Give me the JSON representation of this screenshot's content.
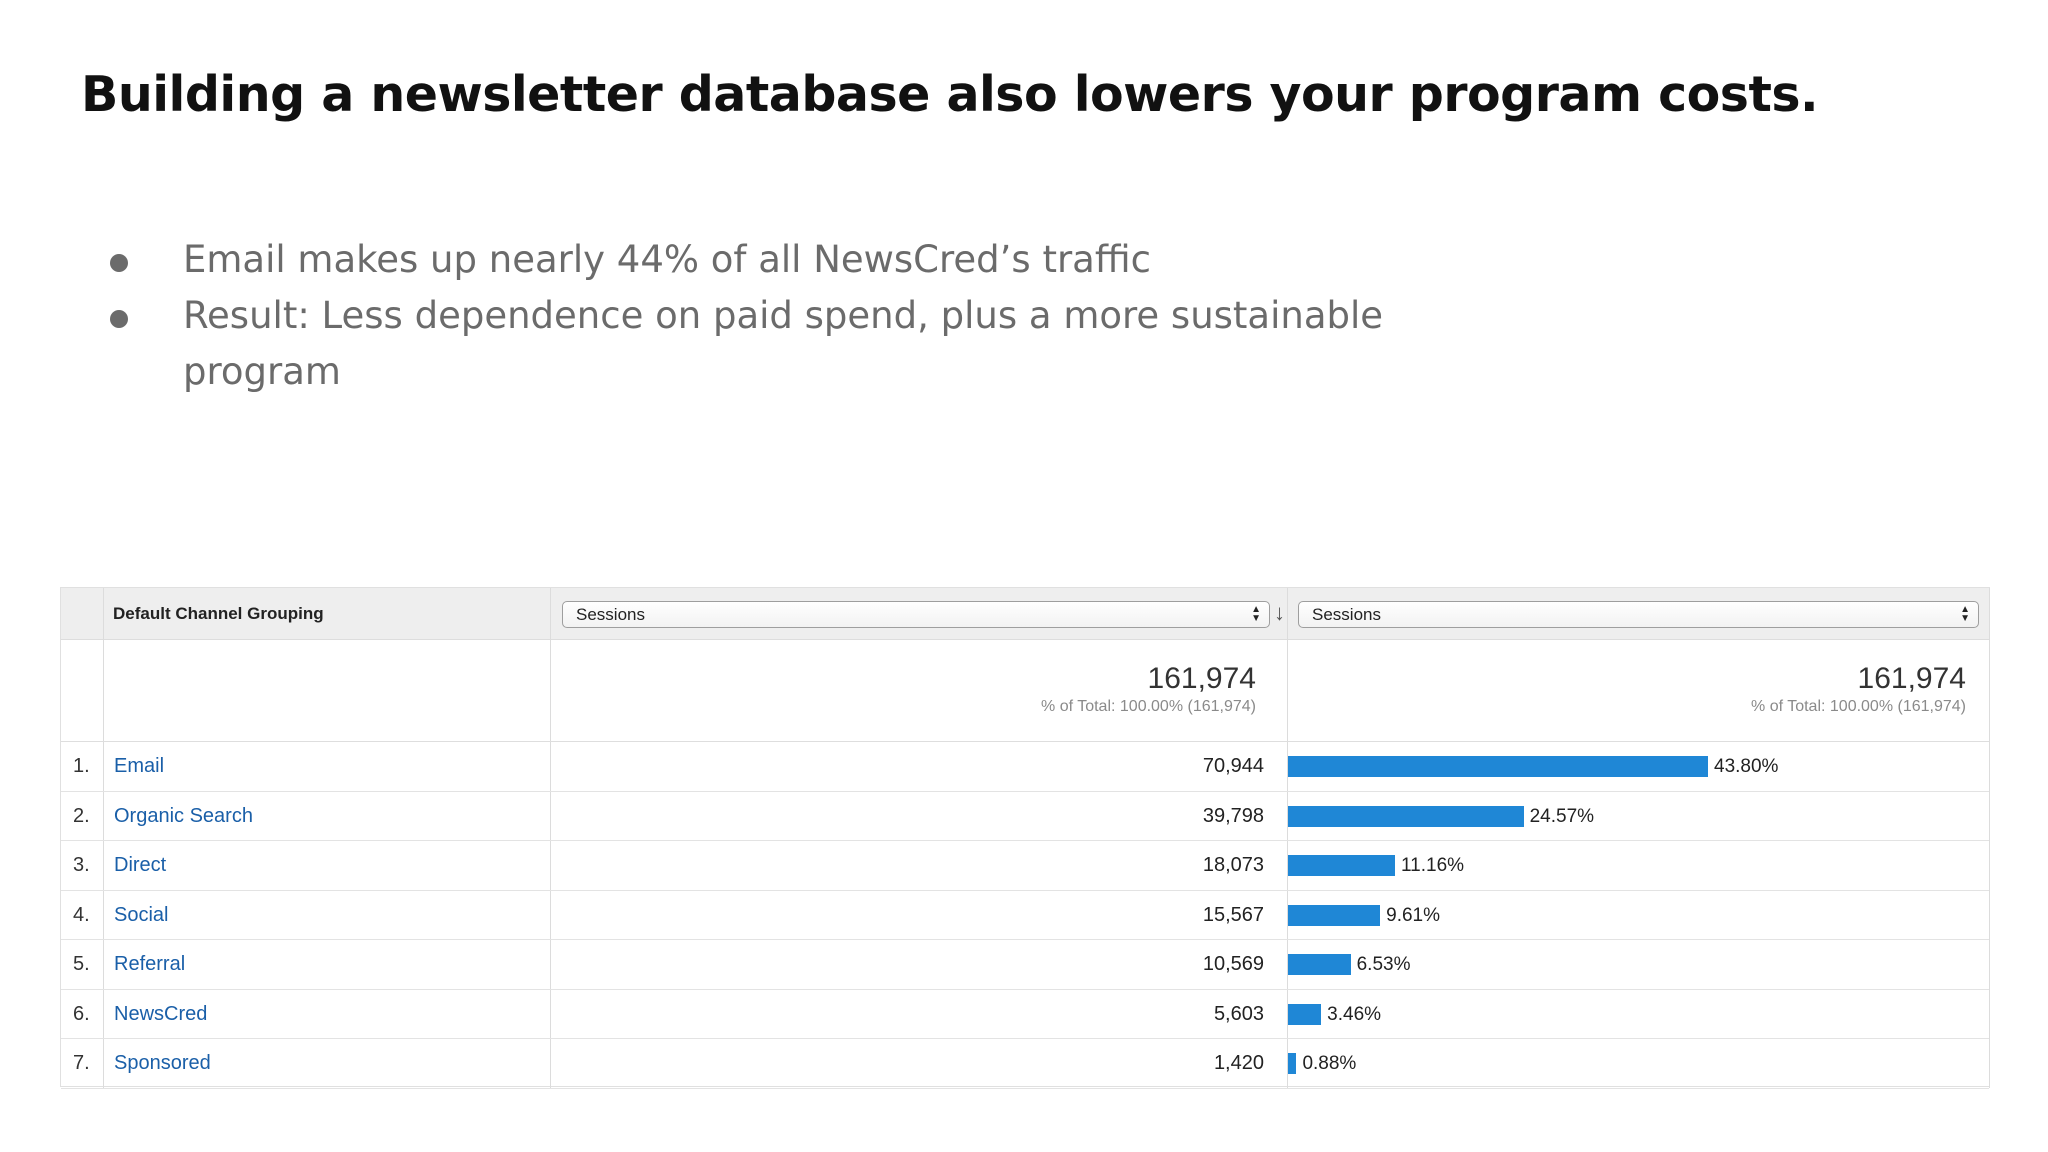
{
  "slide": {
    "title": "Building a newsletter database also lowers your program costs.",
    "bullets": [
      "Email makes up nearly 44% of all NewsCred’s traffic",
      "Result: Less dependence on paid spend, plus a more sustainable program"
    ]
  },
  "table": {
    "dimension_header": "Default Channel Grouping",
    "metric_select_1": "Sessions",
    "metric_select_2": "Sessions",
    "total_1": {
      "value": "161,974",
      "sub": "% of Total: 100.00% (161,974)"
    },
    "total_2": {
      "value": "161,974",
      "sub": "% of Total: 100.00% (161,974)"
    },
    "rows": [
      {
        "num": "1.",
        "channel": "Email",
        "sessions": "70,944",
        "pct_label": "43.80%",
        "pct": 43.8
      },
      {
        "num": "2.",
        "channel": "Organic Search",
        "sessions": "39,798",
        "pct_label": "24.57%",
        "pct": 24.57
      },
      {
        "num": "3.",
        "channel": "Direct",
        "sessions": "18,073",
        "pct_label": "11.16%",
        "pct": 11.16
      },
      {
        "num": "4.",
        "channel": "Social",
        "sessions": "15,567",
        "pct_label": "9.61%",
        "pct": 9.61
      },
      {
        "num": "5.",
        "channel": "Referral",
        "sessions": "10,569",
        "pct_label": "6.53%",
        "pct": 6.53
      },
      {
        "num": "6.",
        "channel": "NewsCred",
        "sessions": "5,603",
        "pct_label": "3.46%",
        "pct": 3.46
      },
      {
        "num": "7.",
        "channel": "Sponsored",
        "sessions": "1,420",
        "pct_label": "0.88%",
        "pct": 0.88
      }
    ]
  },
  "colors": {
    "bar": "#1f87d6",
    "link": "#1a5fa8",
    "bullet_text": "#6b6b6b"
  },
  "icons": {
    "sort": "arrow-down-icon",
    "select_arrows": "updown-chevron-icon"
  }
}
